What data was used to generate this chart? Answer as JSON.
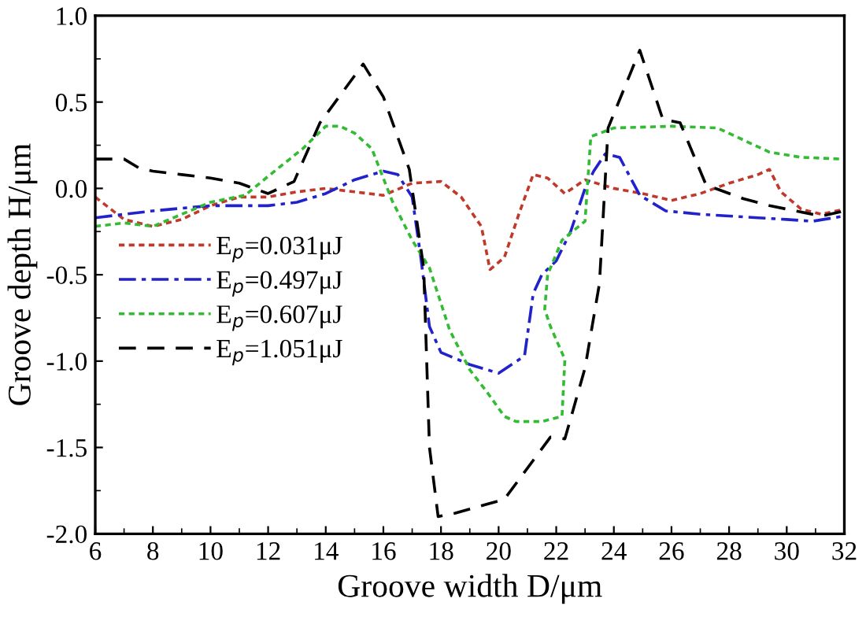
{
  "chart_data": {
    "type": "line",
    "xlabel": "Groove width D/μm",
    "ylabel": "Groove depth H/μm",
    "xlim": [
      6,
      32
    ],
    "ylim": [
      -2.0,
      1.0
    ],
    "xticks": [
      6,
      8,
      10,
      12,
      14,
      16,
      18,
      20,
      22,
      24,
      26,
      28,
      30,
      32
    ],
    "yticks": [
      {
        "value": -2.0,
        "label": "-2.0"
      },
      {
        "value": -1.5,
        "label": "-1.5"
      },
      {
        "value": -1.0,
        "label": "-1.0"
      },
      {
        "value": -0.5,
        "label": "-0.5"
      },
      {
        "value": 0.0,
        "label": "0.0"
      },
      {
        "value": 0.5,
        "label": "0.5"
      },
      {
        "value": 1.0,
        "label": "1.0"
      }
    ],
    "grid": false,
    "legend": "left",
    "marker": "none",
    "series": [
      {
        "name": "E$_{p}$=0.031μJ",
        "color": "#c0392b",
        "line_style": "dotted",
        "x": [
          6,
          7,
          8,
          9,
          10,
          11,
          12,
          13,
          14,
          15,
          16,
          17,
          18,
          18.7,
          19.4,
          19.7,
          20.2,
          20.7,
          21.2,
          21.7,
          22.3,
          23,
          24,
          25,
          26,
          27,
          28,
          29,
          29.4,
          29.8,
          30.5,
          31.2,
          32
        ],
        "values": [
          -0.05,
          -0.18,
          -0.22,
          -0.18,
          -0.1,
          -0.05,
          -0.05,
          -0.02,
          0.0,
          -0.02,
          -0.04,
          0.03,
          0.04,
          -0.05,
          -0.22,
          -0.47,
          -0.4,
          -0.15,
          0.08,
          0.06,
          -0.03,
          0.05,
          0.0,
          -0.03,
          -0.07,
          -0.03,
          0.03,
          0.08,
          0.11,
          -0.02,
          -0.12,
          -0.15,
          -0.12
        ]
      },
      {
        "name": "E$_{p}$=0.497μJ",
        "color": "#2222cc",
        "line_style": "dashdot",
        "x": [
          6,
          8,
          10,
          12,
          13,
          14,
          15,
          16,
          16.5,
          17,
          17.3,
          17.6,
          18,
          19,
          20,
          20.9,
          21.2,
          21.5,
          22,
          22.5,
          23,
          23.3,
          23.7,
          24.2,
          24.9,
          25.8,
          27,
          28,
          29,
          30,
          30.9,
          32
        ],
        "values": [
          -0.17,
          -0.13,
          -0.1,
          -0.1,
          -0.08,
          -0.03,
          0.05,
          0.1,
          0.08,
          -0.05,
          -0.4,
          -0.8,
          -0.95,
          -1.02,
          -1.07,
          -0.97,
          -0.61,
          -0.5,
          -0.42,
          -0.25,
          0.0,
          0.1,
          0.2,
          0.18,
          -0.04,
          -0.13,
          -0.15,
          -0.16,
          -0.17,
          -0.18,
          -0.19,
          -0.16
        ]
      },
      {
        "name": "E$_{p}$=0.607μJ",
        "color": "#33bb33",
        "line_style": "dotted",
        "x": [
          6,
          7,
          8,
          9,
          10,
          11.2,
          12,
          13.2,
          14,
          14.5,
          15,
          15.6,
          16.3,
          17,
          17.6,
          18.3,
          19,
          19.6,
          20.2,
          20.6,
          21.5,
          22.2,
          22.3,
          21.8,
          21.6,
          21.7,
          22.2,
          23,
          23.2,
          24,
          26,
          27.6,
          28.5,
          29.4,
          30.5,
          31.9
        ],
        "values": [
          -0.22,
          -0.2,
          -0.22,
          -0.15,
          -0.08,
          -0.04,
          0.07,
          0.23,
          0.36,
          0.36,
          0.32,
          0.23,
          -0.07,
          -0.3,
          -0.46,
          -0.82,
          -1.05,
          -1.18,
          -1.32,
          -1.35,
          -1.35,
          -1.32,
          -0.99,
          -0.8,
          -0.7,
          -0.5,
          -0.3,
          -0.19,
          0.3,
          0.35,
          0.36,
          0.35,
          0.28,
          0.21,
          0.18,
          0.17
        ]
      },
      {
        "name": "E$_{p}$=1.051μJ",
        "color": "#000000",
        "line_style": "dashed",
        "x": [
          6,
          7,
          7.5,
          8,
          9,
          10,
          11,
          12,
          12.9,
          13.8,
          15.3,
          16,
          16.9,
          17.4,
          17.6,
          17.9,
          18.5,
          20.2,
          21.8,
          22.3,
          23,
          23.5,
          23.8,
          24.9,
          25.7,
          26.3,
          27.2,
          28.5,
          29.4,
          31.2,
          32
        ],
        "values": [
          0.17,
          0.17,
          0.12,
          0.1,
          0.08,
          0.06,
          0.03,
          -0.03,
          0.04,
          0.38,
          0.72,
          0.53,
          0.11,
          -0.46,
          -1.5,
          -1.9,
          -1.88,
          -1.8,
          -1.44,
          -1.45,
          -1.04,
          -0.55,
          0.35,
          0.8,
          0.4,
          0.38,
          0.02,
          -0.06,
          -0.1,
          -0.16,
          -0.13
        ]
      }
    ]
  }
}
